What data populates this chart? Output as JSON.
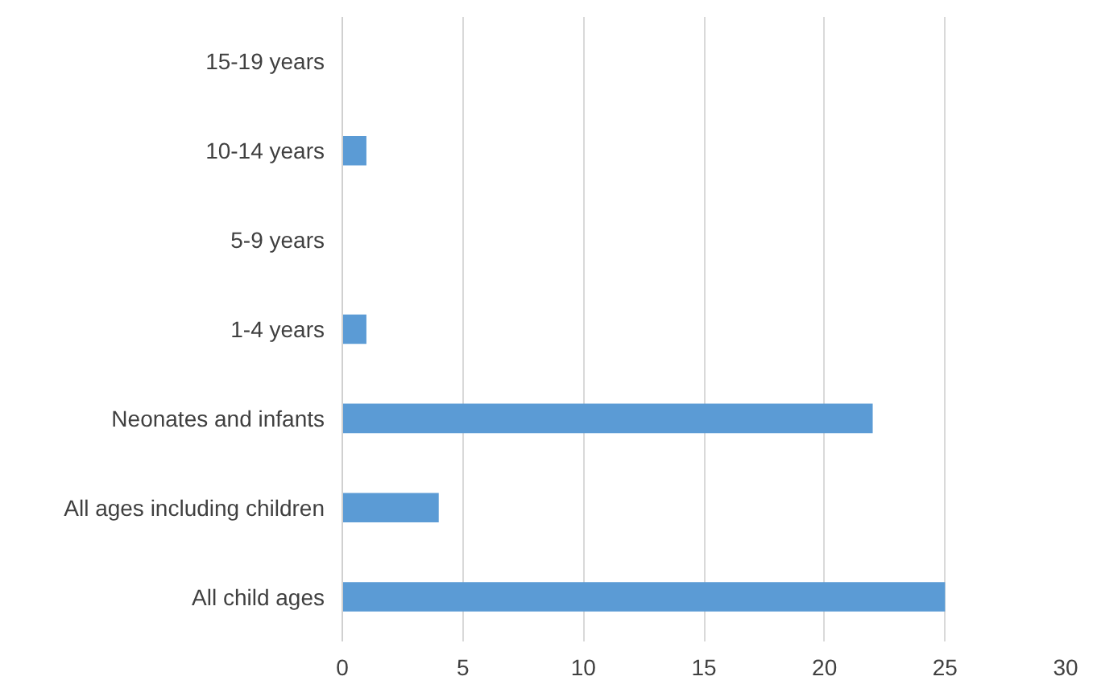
{
  "chart_data": {
    "type": "bar",
    "orientation": "horizontal",
    "categories": [
      "15-19 years",
      "10-14 years",
      "5-9 years",
      "1-4 years",
      "Neonates and infants",
      "All ages including children",
      "All child ages"
    ],
    "values": [
      0,
      1,
      0,
      1,
      22,
      4,
      25
    ],
    "color": "#5b9bd5",
    "xlim": [
      0,
      30
    ],
    "xticks": [
      0,
      5,
      10,
      15,
      20,
      25,
      30
    ],
    "grid": "x"
  }
}
